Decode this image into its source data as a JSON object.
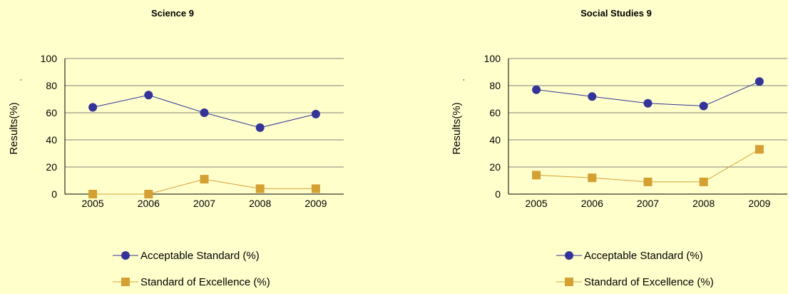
{
  "chart_data": [
    {
      "type": "line",
      "title": "Science 9",
      "ylabel": "Results(%)",
      "ylabel_prefix": ".",
      "xlabel": "",
      "categories": [
        "2005",
        "2006",
        "2007",
        "2008",
        "2009"
      ],
      "ylim": [
        0,
        100
      ],
      "yticks": [
        0,
        20,
        40,
        60,
        80,
        100
      ],
      "grid": true,
      "legend_position": "bottom",
      "series": [
        {
          "name": "Acceptable Standard (%)",
          "values": [
            64,
            73,
            60,
            49,
            59
          ],
          "color": "#333399",
          "marker": "circle"
        },
        {
          "name": "Standard of Excellence (%)",
          "values": [
            0,
            0,
            11,
            4,
            4
          ],
          "color": "#d4a033",
          "marker": "square"
        }
      ]
    },
    {
      "type": "line",
      "title": "Social Studies 9",
      "ylabel": "Results(%)",
      "ylabel_prefix": ".",
      "xlabel": "",
      "categories": [
        "2005",
        "2006",
        "2007",
        "2008",
        "2009"
      ],
      "ylim": [
        0,
        100
      ],
      "yticks": [
        0,
        20,
        40,
        60,
        80,
        100
      ],
      "grid": true,
      "legend_position": "bottom",
      "series": [
        {
          "name": "Acceptable Standard (%)",
          "values": [
            77,
            72,
            67,
            65,
            83
          ],
          "color": "#333399",
          "marker": "circle"
        },
        {
          "name": "Standard of Excellence (%)",
          "values": [
            14,
            12,
            9,
            9,
            33
          ],
          "color": "#d4a033",
          "marker": "square"
        }
      ]
    }
  ]
}
